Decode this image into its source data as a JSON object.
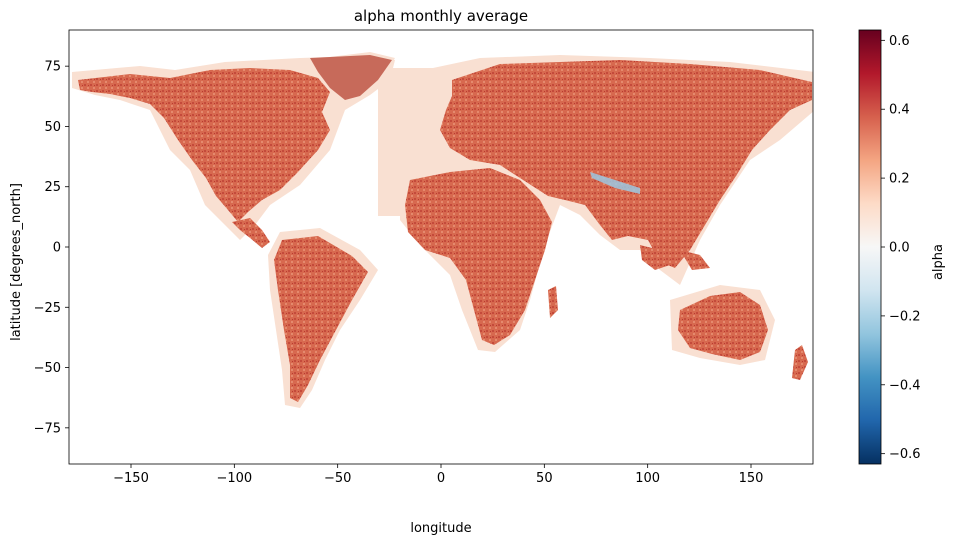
{
  "figure": {
    "title": "alpha monthly average",
    "xlabel": "longitude",
    "ylabel": "latitude [degrees_north]",
    "colorbar_label": "alpha"
  },
  "chart_data": {
    "type": "heatmap",
    "title": "alpha monthly average",
    "xlabel": "longitude",
    "ylabel": "latitude [degrees_north]",
    "xlim": [
      -180,
      180
    ],
    "ylim": [
      -90,
      90
    ],
    "xticks": [
      -150,
      -100,
      -50,
      0,
      50,
      100,
      150
    ],
    "xtick_labels": [
      "−150",
      "−100",
      "−50",
      "0",
      "50",
      "100",
      "150"
    ],
    "yticks": [
      75,
      50,
      25,
      0,
      -25,
      -50,
      -75
    ],
    "ytick_labels": [
      "75",
      "50",
      "25",
      "0",
      "−25",
      "−50",
      "−75"
    ],
    "colorbar": {
      "label": "alpha",
      "vmin": -0.63,
      "vmax": 0.63,
      "ticks": [
        0.6,
        0.4,
        0.2,
        0.0,
        -0.2,
        -0.4,
        -0.6
      ],
      "tick_labels": [
        "0.6",
        "0.4",
        "0.2",
        "0.0",
        "−0.2",
        "−0.4",
        "−0.6"
      ],
      "colormap": "RdBu_r",
      "colors": [
        "#053061",
        "#2166ac",
        "#4393c3",
        "#92c5de",
        "#d1e5f0",
        "#f7f7f7",
        "#fddbc7",
        "#f4a582",
        "#d6604d",
        "#b2182b",
        "#67001f"
      ]
    },
    "ocean_color": "#ffffff",
    "land_color": "#d46a52",
    "coast_color": "#f9e0d2"
  }
}
